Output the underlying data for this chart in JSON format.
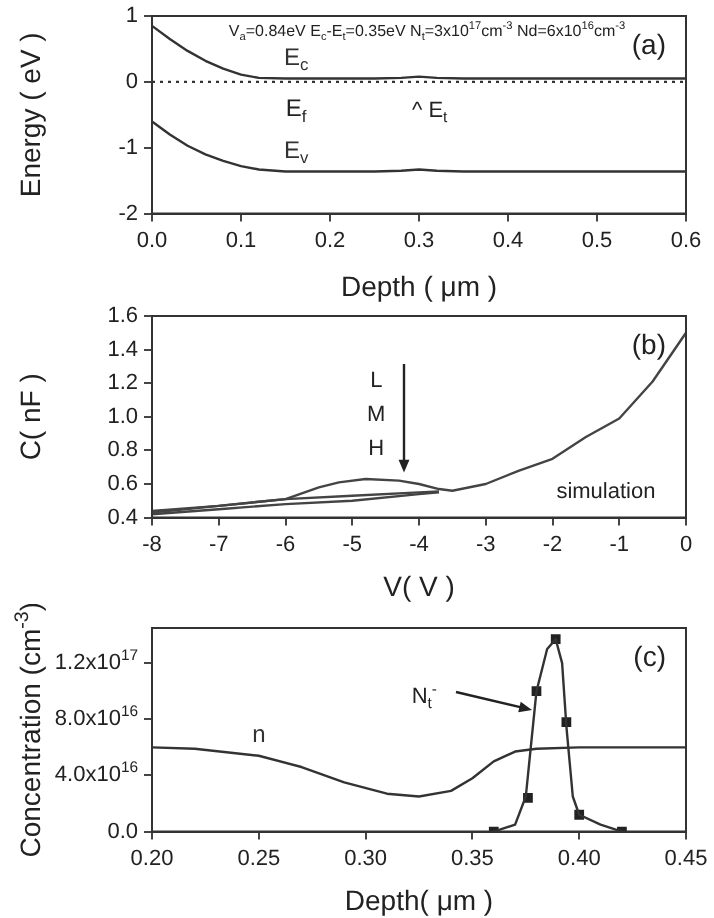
{
  "chart_data": [
    {
      "type": "line",
      "title": "(a)",
      "subtitle": "V$_{a}$=0.84eV E$_{c}$-E$_{t}$=0.35eV N$_{t}$=3x10$^{17}$cm$^{-3}$ Nd=6x10$^{16}$cm$^{-3}$",
      "xlabel": "Depth ( μm )",
      "ylabel": "Energy ( eV )",
      "x": [
        0,
        0.02,
        0.04,
        0.06,
        0.08,
        0.1,
        0.12,
        0.15,
        0.2,
        0.25,
        0.28,
        0.3,
        0.32,
        0.35,
        0.4,
        0.5,
        0.6
      ],
      "series": [
        {
          "name": "E$_{c}$",
          "color": "#333333",
          "values": [
            0.85,
            0.65,
            0.47,
            0.32,
            0.2,
            0.11,
            0.06,
            0.05,
            0.05,
            0.05,
            0.06,
            0.08,
            0.06,
            0.05,
            0.05,
            0.05,
            0.05
          ]
        },
        {
          "name": "E$_{v}$",
          "color": "#333333",
          "values": [
            -0.6,
            -0.8,
            -0.97,
            -1.1,
            -1.2,
            -1.28,
            -1.33,
            -1.36,
            -1.36,
            -1.36,
            -1.35,
            -1.33,
            -1.35,
            -1.36,
            -1.36,
            -1.36,
            -1.36
          ]
        }
      ],
      "xlim": [
        0,
        0.6
      ],
      "xticks": [
        {
          "value": 0,
          "label": "0.0"
        },
        0.1,
        0.2,
        0.3,
        0.4,
        0.5,
        0.6
      ],
      "ylim": [
        -2,
        1
      ],
      "yticks": [
        -2,
        -1,
        0,
        1
      ],
      "ref_lines": [
        {
          "axis": "y",
          "value": 0,
          "label": "E$_{f}$",
          "line_style": "dotted",
          "color": "#333333"
        }
      ],
      "annotations": [
        "^ E$_{t}$"
      ],
      "grid": false,
      "legend": false,
      "marker": "none",
      "line_style": "solid"
    },
    {
      "type": "line",
      "title": "(b)",
      "xlabel": "V( V )",
      "ylabel": "C( nF )",
      "series": [
        {
          "color": "#444444",
          "x": [
            -8,
            -7,
            -6.5,
            -6,
            -5.5,
            -5.2,
            -4.8,
            -4.3,
            -4,
            -3.7,
            -3.5,
            -3,
            -2.5,
            -2,
            -1.5,
            -1,
            -0.5,
            0
          ],
          "values": [
            0.44,
            0.47,
            0.49,
            0.51,
            0.58,
            0.61,
            0.63,
            0.62,
            0.6,
            0.57,
            0.56,
            0.6,
            0.68,
            0.75,
            0.88,
            0.99,
            1.21,
            1.5
          ]
        },
        {
          "color": "#444444",
          "x": [
            -8,
            -7,
            -6,
            -5,
            -4,
            -3.7
          ],
          "values": [
            0.43,
            0.47,
            0.51,
            0.53,
            0.55,
            0.555
          ]
        },
        {
          "color": "#444444",
          "x": [
            -8,
            -7,
            -6,
            -5,
            -4,
            -3.7
          ],
          "values": [
            0.42,
            0.45,
            0.48,
            0.5,
            0.54,
            0.55
          ]
        }
      ],
      "xlim": [
        -8,
        0
      ],
      "xticks": [
        -8,
        -7,
        -6,
        -5,
        -4,
        -3,
        -2,
        -1,
        0
      ],
      "ylim": [
        0.4,
        1.6
      ],
      "yticks": [
        0.4,
        0.6,
        0.8,
        {
          "value": 1,
          "label": "1.0"
        },
        1.2,
        1.4,
        1.6
      ],
      "annotations": [
        "L",
        "M",
        "H",
        "simulation"
      ],
      "grid": false,
      "legend": false,
      "marker": "none",
      "line_style": "solid"
    },
    {
      "type": "line",
      "title": "(c)",
      "xlabel": "Depth( μm )",
      "ylabel": "Concentration (cm$^{-3}$)",
      "series": [
        {
          "name": "n",
          "color": "#333333",
          "x": [
            0.2,
            0.22,
            0.25,
            0.27,
            0.29,
            0.31,
            0.325,
            0.34,
            0.35,
            0.36,
            0.37,
            0.38,
            0.4,
            0.45
          ],
          "values": [
            6e+16,
            5.9e+16,
            5.4e+16,
            4.6e+16,
            3.5e+16,
            2.7e+16,
            2.5e+16,
            2.9e+16,
            3.8e+16,
            5e+16,
            5.7e+16,
            5.9e+16,
            6e+16,
            6e+16
          ]
        },
        {
          "color": "#333333",
          "x": [
            0.36,
            0.37,
            0.375,
            0.38,
            0.385,
            0.389,
            0.392,
            0.394,
            0.397,
            0.4,
            0.41,
            0.42
          ],
          "values": [
            0,
            5000000000000000.0,
            2.5e+16,
            1e+17,
            1.3e+17,
            1.37e+17,
            1.2e+17,
            7.5e+16,
            2.5e+16,
            1.2e+16,
            5000000000000000.0,
            0
          ]
        },
        {
          "type": "scatter",
          "marker": "square",
          "color": "#222222",
          "x": [
            0.36,
            0.376,
            0.38,
            0.389,
            0.394,
            0.4,
            0.42
          ],
          "values": [
            0,
            2.4e+16,
            1e+17,
            1.37e+17,
            7.8e+16,
            1.2e+16,
            0
          ]
        }
      ],
      "xlim": [
        0.2,
        0.45
      ],
      "xticks": [
        {
          "value": 0.2,
          "label": "0.20"
        },
        0.25,
        {
          "value": 0.3,
          "label": "0.30"
        },
        0.35,
        {
          "value": 0.4,
          "label": "0.40"
        },
        0.45
      ],
      "ylim": [
        0,
        1.45e+17
      ],
      "yticks": [
        {
          "value": 0,
          "label": "0.0"
        },
        {
          "value": 4e+16,
          "label": "4.0x10$^{16}$"
        },
        {
          "value": 8e+16,
          "label": "8.0x10$^{16}$"
        },
        {
          "value": 1.2e+17,
          "label": "1.2x10$^{17}$"
        }
      ],
      "annotations": [
        "N$_{t}$$^{-}$"
      ],
      "grid": false,
      "legend": false,
      "marker": "none",
      "line_style": "solid"
    }
  ]
}
